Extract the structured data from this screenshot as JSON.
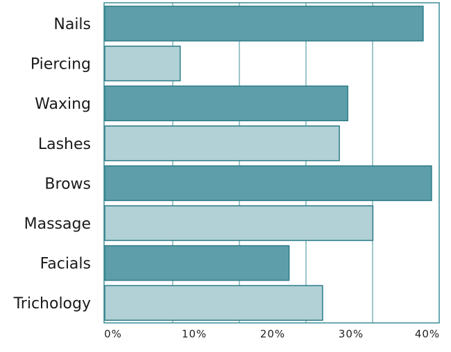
{
  "chart_data": {
    "type": "bar",
    "orientation": "horizontal",
    "categories": [
      "Nails",
      "Piercing",
      "Waxing",
      "Lashes",
      "Brows",
      "Massage",
      "Facials",
      "Trichology"
    ],
    "values": [
      38,
      9,
      29,
      28,
      39,
      32,
      22,
      26
    ],
    "xlim": [
      0,
      40
    ],
    "x_ticks": [
      "0%",
      "10%",
      "20%",
      "30%",
      "40%"
    ],
    "grid": true,
    "legend": "none",
    "colors": {
      "dark": "#5e9eaa",
      "light": "#b2d1d6",
      "edge": "#2a7a86",
      "axis": "#3b8c96"
    }
  }
}
